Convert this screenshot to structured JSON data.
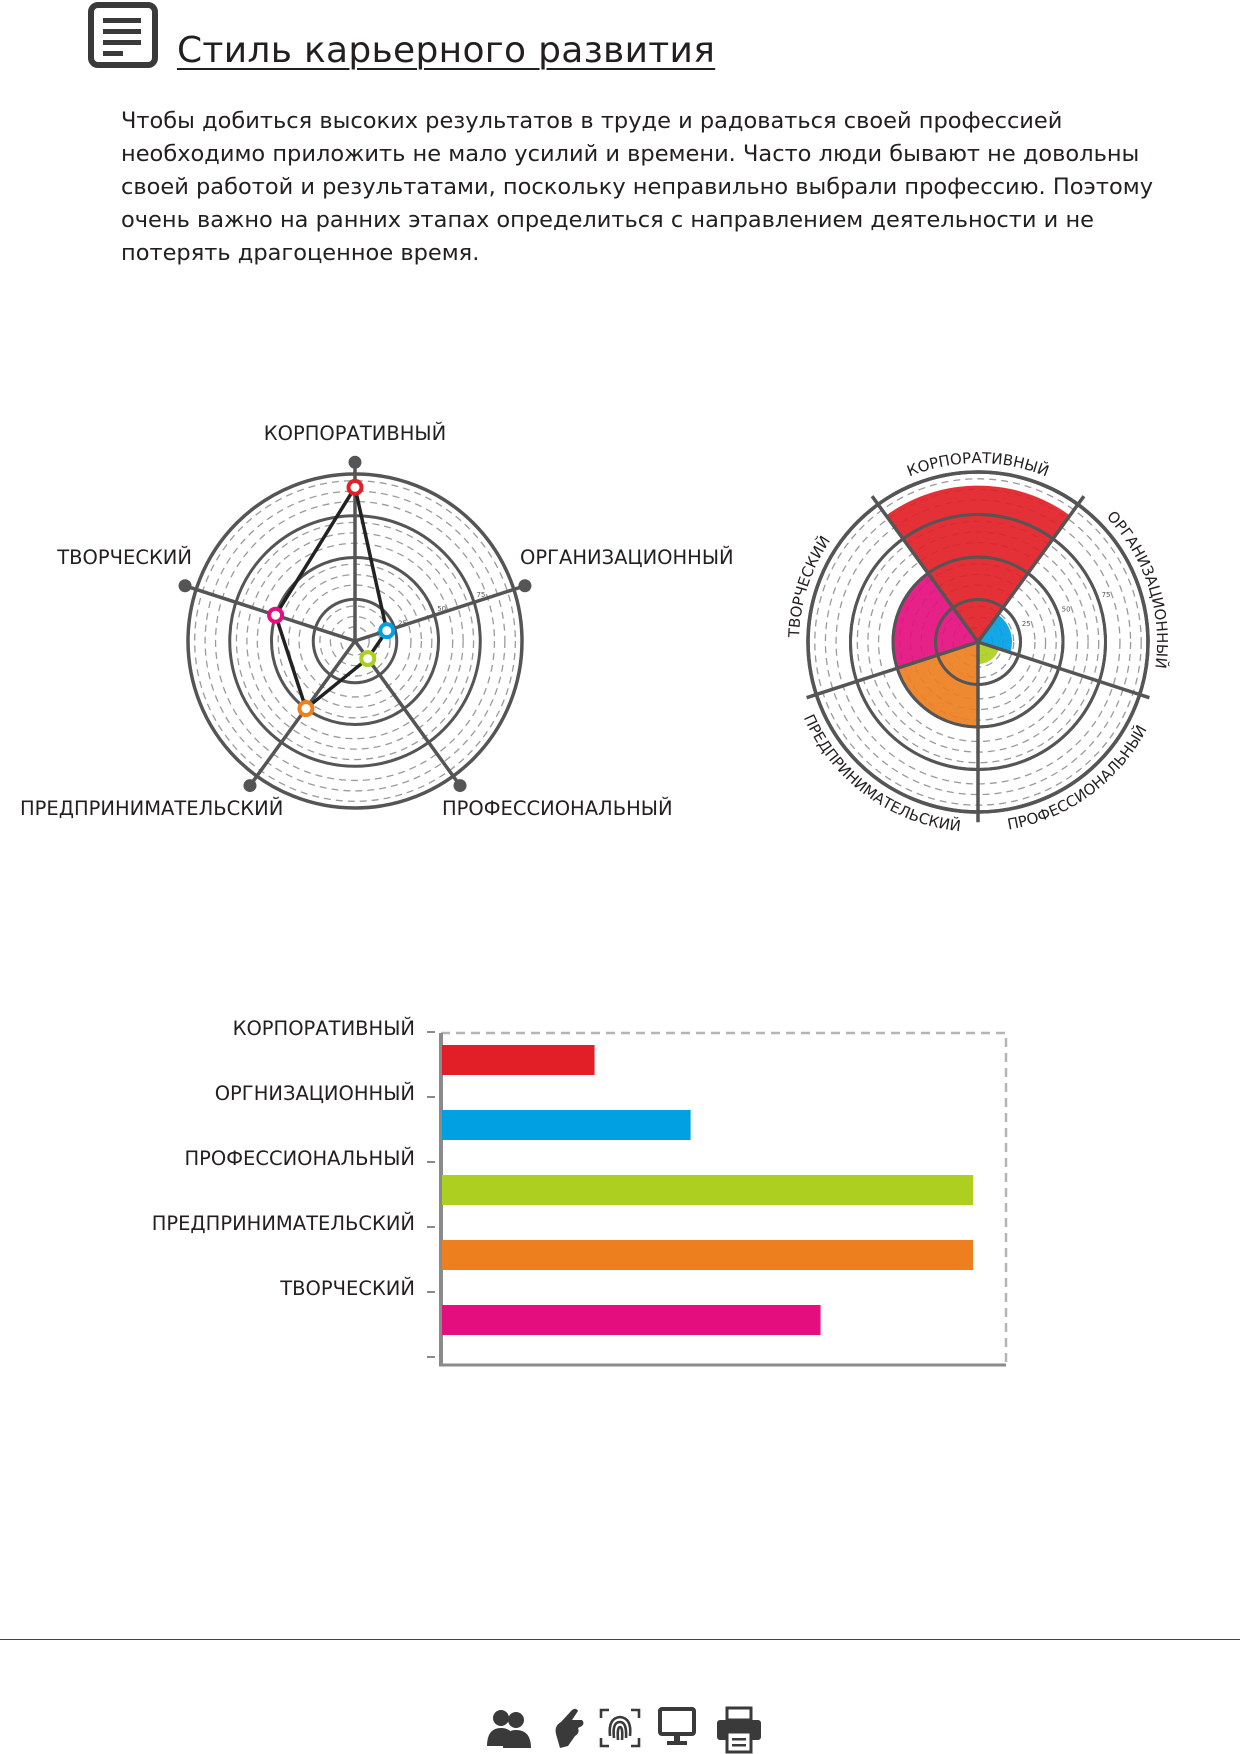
{
  "page": {
    "title": "Стиль карьерного развития",
    "intro": "Чтобы добиться высоких результатов в труде и радоваться своей профессией необходимо приложить не мало усилий и времени. Часто люди бывают не довольны своей работой и результатами, поскольку неправильно выбрали профессию. Поэтому очень важно на ранних этапах определиться с направлением деятельности и не потерять драгоценное время."
  },
  "colors": {
    "corporate": "#e21f26",
    "organizational": "#00a0e3",
    "professional": "#adcf20",
    "entrepreneurial": "#ee7f1f",
    "creative": "#e40e7e",
    "grid": "#555555"
  },
  "icons": {
    "header": "document-icon",
    "footer": [
      "people-icon",
      "pointing-hand-icon",
      "fingerprint-icon",
      "monitor-icon",
      "printer-icon"
    ]
  },
  "chart_data": [
    {
      "type": "radar",
      "categories": [
        "КОРПОРАТИВНЫЙ",
        "ОРГАНИЗАЦИОННЫЙ",
        "ПРОФЕССИОНАЛЬНЫЙ",
        "ПРЕДПРИНИМАТЕЛЬСКИЙ",
        "ТВОРЧЕСКИЙ"
      ],
      "values": [
        92,
        20,
        13,
        50,
        50
      ],
      "rlim": [
        0,
        100
      ],
      "ring_labels": [
        "25",
        "50",
        "75"
      ],
      "grid": true
    },
    {
      "type": "rose",
      "categories": [
        "КОРПОРАТИВНЫЙ",
        "ОРГАНИЗАЦИОННЫЙ",
        "ПРОФЕССИОНАЛЬНЫЙ",
        "ПРЕДПРИНИМАТЕЛЬСКИЙ",
        "ТВОРЧЕСКИЙ"
      ],
      "values": [
        92,
        20,
        13,
        50,
        50
      ],
      "rlim": [
        0,
        100
      ],
      "ring_labels": [
        "25",
        "50",
        "75"
      ],
      "grid": true
    },
    {
      "type": "bar",
      "orientation": "horizontal",
      "categories": [
        "КОРПОРАТИВНЫЙ",
        "ОРГНИЗАЦИОННЫЙ",
        "ПРОФЕССИОНАЛЬНЫЙ",
        "ПРЕДПРИНИМАТЕЛЬСКИЙ",
        "ТВОРЧЕСКИЙ"
      ],
      "values": [
        27,
        44,
        94,
        94,
        67
      ],
      "xlim": [
        0,
        100
      ],
      "grid": false
    }
  ]
}
